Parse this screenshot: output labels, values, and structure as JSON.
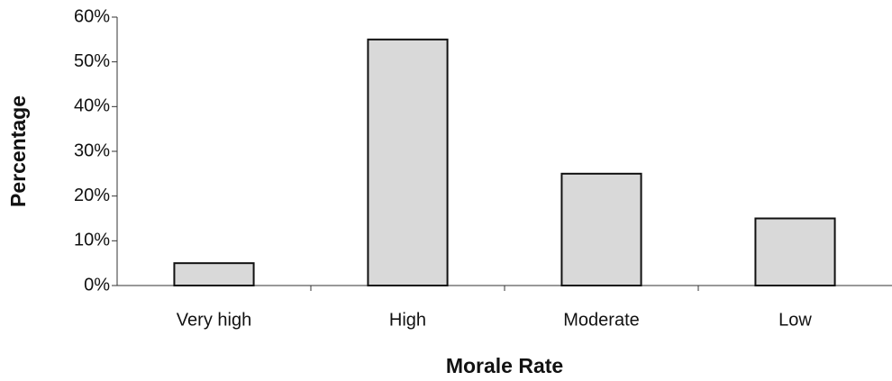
{
  "chart_data": {
    "type": "bar",
    "x_label": "Morale Rate",
    "y_label": "Percentage",
    "categories": [
      "Very high",
      "High",
      "Moderate",
      "Low"
    ],
    "values": [
      5,
      55,
      25,
      15
    ],
    "color": "#d9d9d9",
    "ylim": [
      0,
      60
    ],
    "yticks": [
      {
        "value": 0,
        "label": "0%"
      },
      {
        "value": 10,
        "label": "10%"
      },
      {
        "value": 20,
        "label": "20%"
      },
      {
        "value": 30,
        "label": "30%"
      },
      {
        "value": 40,
        "label": "40%"
      },
      {
        "value": 50,
        "label": "50%"
      },
      {
        "value": 60,
        "label": "60%"
      }
    ],
    "grid": false
  }
}
